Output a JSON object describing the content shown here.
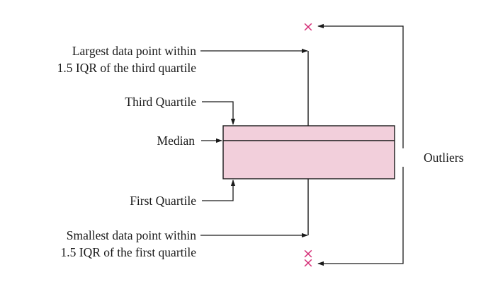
{
  "labels": {
    "largest_line1": "Largest data point within",
    "largest_line2": "1.5 IQR of the third quartile",
    "third_quartile": "Third Quartile",
    "median": "Median",
    "first_quartile": "First Quartile",
    "smallest_line1": "Smallest data point within",
    "smallest_line2": "1.5 IQR of the first quartile",
    "outliers": "Outliers"
  },
  "colors": {
    "box_fill": "#f2cfdb",
    "line": "#1a1a1a",
    "outlier_marker": "#d6337a"
  },
  "outlier_marker_glyph": "×"
}
